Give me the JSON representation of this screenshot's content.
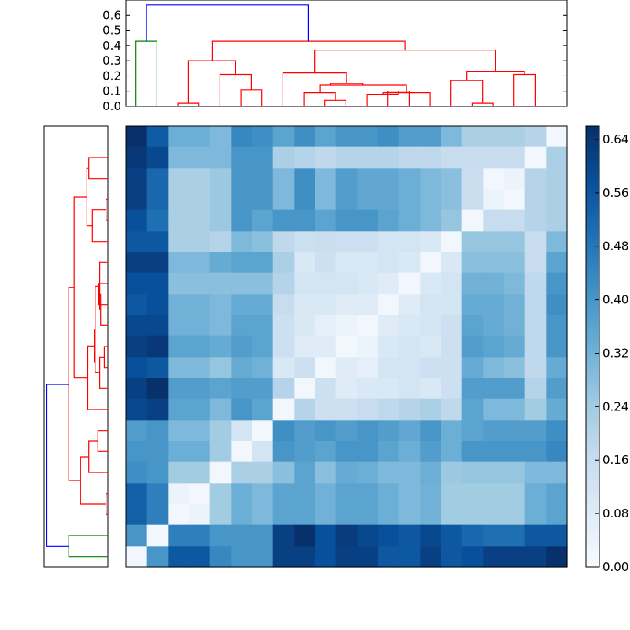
{
  "chart_data": [
    {
      "panel": "top-dendrogram",
      "type": "dendrogram",
      "ylim": [
        0,
        0.7
      ],
      "yticks": [
        "0.0",
        "0.1",
        "0.2",
        "0.3",
        "0.4",
        "0.5",
        "0.6"
      ],
      "links": [
        {
          "x": [
            1,
            1,
            2,
            2
          ],
          "y": [
            0,
            0.43,
            0.43,
            0
          ],
          "color": "#008000"
        },
        {
          "x": [
            3,
            3,
            4,
            4
          ],
          "y": [
            0,
            0.02,
            0.02,
            0
          ],
          "color": "#ff0000"
        },
        {
          "x": [
            6,
            6,
            7,
            7
          ],
          "y": [
            0,
            0.11,
            0.11,
            0
          ],
          "color": "#ff0000"
        },
        {
          "x": [
            5,
            5,
            6.5,
            6.5
          ],
          "y": [
            0,
            0.21,
            0.21,
            0.11
          ],
          "color": "#ff0000"
        },
        {
          "x": [
            3.5,
            3.5,
            5.75,
            5.75
          ],
          "y": [
            0.02,
            0.3,
            0.3,
            0.21
          ],
          "color": "#ff0000"
        },
        {
          "x": [
            10,
            10,
            11,
            11
          ],
          "y": [
            0,
            0.04,
            0.04,
            0
          ],
          "color": "#ff0000"
        },
        {
          "x": [
            9,
            9,
            10.5,
            10.5
          ],
          "y": [
            0,
            0.09,
            0.09,
            0.04
          ],
          "color": "#ff0000"
        },
        {
          "x": [
            13,
            13,
            14,
            14
          ],
          "y": [
            0,
            0.1,
            0.1,
            0
          ],
          "color": "#ff0000"
        },
        {
          "x": [
            12,
            12,
            13.5,
            13.5
          ],
          "y": [
            0,
            0.08,
            0.08,
            0.1
          ],
          "color": "#ff0000"
        },
        {
          "x": [
            12.75,
            12.75,
            15,
            15
          ],
          "y": [
            0.08,
            0.09,
            0.09,
            0
          ],
          "color": "#ff0000"
        },
        {
          "x": [
            13.875,
            13.875,
            9.75,
            9.75
          ],
          "y": [
            0.09,
            0.14,
            0.14,
            0.09
          ],
          "color": "#ff0000"
        },
        {
          "x": [
            10.25,
            10.25,
            11.8,
            11.8
          ],
          "y": [
            0.14,
            0.15,
            0.15,
            0.14
          ],
          "color": "#ff0000"
        },
        {
          "x": [
            8,
            8,
            11.025,
            11.025
          ],
          "y": [
            0,
            0.22,
            0.22,
            0.15
          ],
          "color": "#ff0000"
        },
        {
          "x": [
            17,
            17,
            18,
            18
          ],
          "y": [
            0,
            0.02,
            0.02,
            0
          ],
          "color": "#ff0000"
        },
        {
          "x": [
            16,
            16,
            17.5,
            17.5
          ],
          "y": [
            0,
            0.17,
            0.17,
            0.02
          ],
          "color": "#ff0000"
        },
        {
          "x": [
            19,
            19,
            20,
            20
          ],
          "y": [
            0,
            0.21,
            0.21,
            0
          ],
          "color": "#ff0000"
        },
        {
          "x": [
            16.75,
            16.75,
            19.5,
            19.5
          ],
          "y": [
            0.17,
            0.23,
            0.23,
            0.21
          ],
          "color": "#ff0000"
        },
        {
          "x": [
            9.5125,
            9.5125,
            18.125,
            18.125
          ],
          "y": [
            0.22,
            0.37,
            0.37,
            0.23
          ],
          "color": "#ff0000"
        },
        {
          "x": [
            4.625,
            4.625,
            13.8,
            13.8
          ],
          "y": [
            0.3,
            0.43,
            0.43,
            0.37
          ],
          "color": "#ff0000"
        },
        {
          "x": [
            1.5,
            1.5,
            9.2,
            9.2
          ],
          "y": [
            0.43,
            0.67,
            0.67,
            0.43
          ],
          "color": "#0000ff"
        }
      ]
    },
    {
      "panel": "left-dendrogram",
      "type": "dendrogram",
      "orientation": "left",
      "xlim": [
        0.7,
        0
      ],
      "links": [
        {
          "y": [
            1,
            1,
            2,
            2
          ],
          "x": [
            0,
            0.43,
            0.43,
            0
          ],
          "color": "#008000"
        },
        {
          "y": [
            3,
            3,
            4,
            4
          ],
          "x": [
            0,
            0.02,
            0.02,
            0
          ],
          "color": "#ff0000"
        },
        {
          "y": [
            6,
            6,
            7,
            7
          ],
          "x": [
            0,
            0.11,
            0.11,
            0
          ],
          "color": "#ff0000"
        },
        {
          "y": [
            5,
            5,
            6.5,
            6.5
          ],
          "x": [
            0,
            0.21,
            0.21,
            0.11
          ],
          "color": "#ff0000"
        },
        {
          "y": [
            3.5,
            3.5,
            5.75,
            5.75
          ],
          "x": [
            0.02,
            0.3,
            0.3,
            0.21
          ],
          "color": "#ff0000"
        },
        {
          "y": [
            10,
            10,
            11,
            11
          ],
          "x": [
            0,
            0.04,
            0.04,
            0
          ],
          "color": "#ff0000"
        },
        {
          "y": [
            9,
            9,
            10.5,
            10.5
          ],
          "x": [
            0,
            0.09,
            0.09,
            0.04
          ],
          "color": "#ff0000"
        },
        {
          "y": [
            13,
            13,
            14,
            14
          ],
          "x": [
            0,
            0.1,
            0.1,
            0
          ],
          "color": "#ff0000"
        },
        {
          "y": [
            12,
            12,
            13.5,
            13.5
          ],
          "x": [
            0,
            0.08,
            0.08,
            0.1
          ],
          "color": "#ff0000"
        },
        {
          "y": [
            12.75,
            12.75,
            15,
            15
          ],
          "x": [
            0.08,
            0.09,
            0.09,
            0
          ],
          "color": "#ff0000"
        },
        {
          "y": [
            13.875,
            13.875,
            9.75,
            9.75
          ],
          "x": [
            0.09,
            0.14,
            0.14,
            0.09
          ],
          "color": "#ff0000"
        },
        {
          "y": [
            10.25,
            10.25,
            11.8,
            11.8
          ],
          "x": [
            0.14,
            0.15,
            0.15,
            0.14
          ],
          "color": "#ff0000"
        },
        {
          "y": [
            8,
            8,
            11.025,
            11.025
          ],
          "x": [
            0,
            0.22,
            0.22,
            0.15
          ],
          "color": "#ff0000"
        },
        {
          "y": [
            17,
            17,
            18,
            18
          ],
          "x": [
            0,
            0.02,
            0.02,
            0
          ],
          "color": "#ff0000"
        },
        {
          "y": [
            16,
            16,
            17.5,
            17.5
          ],
          "x": [
            0,
            0.17,
            0.17,
            0.02
          ],
          "color": "#ff0000"
        },
        {
          "y": [
            19,
            19,
            20,
            20
          ],
          "x": [
            0,
            0.21,
            0.21,
            0
          ],
          "color": "#ff0000"
        },
        {
          "y": [
            16.75,
            16.75,
            19.5,
            19.5
          ],
          "x": [
            0.17,
            0.23,
            0.23,
            0.21
          ],
          "color": "#ff0000"
        },
        {
          "y": [
            9.5125,
            9.5125,
            18.125,
            18.125
          ],
          "x": [
            0.22,
            0.37,
            0.37,
            0.23
          ],
          "color": "#ff0000"
        },
        {
          "y": [
            4.625,
            4.625,
            13.8,
            13.8
          ],
          "x": [
            0.3,
            0.43,
            0.43,
            0.37
          ],
          "color": "#ff0000"
        },
        {
          "y": [
            1.5,
            1.5,
            9.2,
            9.2
          ],
          "x": [
            0.43,
            0.67,
            0.67,
            0.43
          ],
          "color": "#0000ff"
        }
      ]
    },
    {
      "panel": "heatmap",
      "type": "heatmap",
      "colormap": "Blues",
      "vmin": 0,
      "vmax": 0.66,
      "rows_top_to_bottom": [
        [
          0.66,
          0.55,
          0.33,
          0.33,
          0.3,
          0.44,
          0.42,
          0.36,
          0.42,
          0.36,
          0.4,
          0.4,
          0.42,
          0.38,
          0.38,
          0.3,
          0.22,
          0.22,
          0.22,
          0.2,
          0.02
        ],
        [
          0.64,
          0.6,
          0.3,
          0.3,
          0.3,
          0.4,
          0.4,
          0.22,
          0.2,
          0.18,
          0.2,
          0.2,
          0.2,
          0.18,
          0.18,
          0.16,
          0.16,
          0.16,
          0.16,
          0.02,
          0.22
        ],
        [
          0.62,
          0.52,
          0.22,
          0.22,
          0.25,
          0.4,
          0.4,
          0.3,
          0.42,
          0.3,
          0.38,
          0.35,
          0.35,
          0.33,
          0.3,
          0.28,
          0.15,
          0.02,
          0.04,
          0.2,
          0.22
        ],
        [
          0.62,
          0.52,
          0.22,
          0.22,
          0.25,
          0.4,
          0.4,
          0.3,
          0.42,
          0.3,
          0.38,
          0.35,
          0.35,
          0.33,
          0.3,
          0.28,
          0.15,
          0.04,
          0.02,
          0.2,
          0.22
        ],
        [
          0.58,
          0.5,
          0.22,
          0.22,
          0.25,
          0.4,
          0.36,
          0.4,
          0.4,
          0.36,
          0.4,
          0.4,
          0.36,
          0.33,
          0.3,
          0.26,
          0.02,
          0.16,
          0.16,
          0.2,
          0.22
        ],
        [
          0.56,
          0.56,
          0.22,
          0.22,
          0.2,
          0.3,
          0.28,
          0.18,
          0.14,
          0.15,
          0.14,
          0.14,
          0.12,
          0.12,
          0.1,
          0.02,
          0.26,
          0.26,
          0.26,
          0.16,
          0.3
        ],
        [
          0.62,
          0.62,
          0.3,
          0.3,
          0.34,
          0.36,
          0.36,
          0.22,
          0.1,
          0.14,
          0.1,
          0.1,
          0.12,
          0.1,
          0.02,
          0.1,
          0.28,
          0.28,
          0.28,
          0.16,
          0.36
        ],
        [
          0.58,
          0.58,
          0.28,
          0.28,
          0.28,
          0.28,
          0.28,
          0.2,
          0.12,
          0.12,
          0.12,
          0.1,
          0.08,
          0.02,
          0.1,
          0.12,
          0.32,
          0.32,
          0.3,
          0.18,
          0.4
        ],
        [
          0.56,
          0.58,
          0.32,
          0.32,
          0.3,
          0.34,
          0.34,
          0.16,
          0.1,
          0.1,
          0.08,
          0.08,
          0.02,
          0.08,
          0.12,
          0.12,
          0.34,
          0.34,
          0.32,
          0.18,
          0.42
        ],
        [
          0.6,
          0.6,
          0.32,
          0.32,
          0.3,
          0.36,
          0.36,
          0.14,
          0.1,
          0.06,
          0.04,
          0.02,
          0.08,
          0.1,
          0.12,
          0.14,
          0.36,
          0.34,
          0.32,
          0.18,
          0.4
        ],
        [
          0.62,
          0.64,
          0.36,
          0.36,
          0.34,
          0.38,
          0.36,
          0.14,
          0.08,
          0.08,
          0.02,
          0.04,
          0.1,
          0.12,
          0.1,
          0.14,
          0.38,
          0.36,
          0.34,
          0.18,
          0.4
        ],
        [
          0.58,
          0.56,
          0.3,
          0.3,
          0.26,
          0.34,
          0.32,
          0.1,
          0.14,
          0.02,
          0.08,
          0.06,
          0.12,
          0.12,
          0.14,
          0.14,
          0.34,
          0.3,
          0.28,
          0.18,
          0.34
        ],
        [
          0.62,
          0.66,
          0.38,
          0.38,
          0.36,
          0.38,
          0.38,
          0.2,
          0.02,
          0.14,
          0.08,
          0.1,
          0.1,
          0.12,
          0.1,
          0.14,
          0.38,
          0.38,
          0.38,
          0.2,
          0.38
        ],
        [
          0.6,
          0.62,
          0.36,
          0.36,
          0.3,
          0.4,
          0.36,
          0.02,
          0.2,
          0.14,
          0.14,
          0.16,
          0.18,
          0.2,
          0.22,
          0.18,
          0.36,
          0.3,
          0.3,
          0.24,
          0.34
        ],
        [
          0.38,
          0.4,
          0.3,
          0.3,
          0.24,
          0.12,
          0.02,
          0.42,
          0.38,
          0.4,
          0.38,
          0.4,
          0.38,
          0.35,
          0.4,
          0.33,
          0.36,
          0.38,
          0.38,
          0.38,
          0.42
        ],
        [
          0.4,
          0.4,
          0.33,
          0.33,
          0.24,
          0.02,
          0.12,
          0.4,
          0.38,
          0.36,
          0.4,
          0.4,
          0.36,
          0.33,
          0.38,
          0.33,
          0.4,
          0.4,
          0.4,
          0.4,
          0.44
        ],
        [
          0.42,
          0.4,
          0.24,
          0.24,
          0.02,
          0.22,
          0.22,
          0.28,
          0.36,
          0.28,
          0.34,
          0.33,
          0.3,
          0.3,
          0.33,
          0.25,
          0.26,
          0.26,
          0.26,
          0.3,
          0.3
        ],
        [
          0.54,
          0.46,
          0.04,
          0.02,
          0.24,
          0.33,
          0.3,
          0.36,
          0.36,
          0.32,
          0.36,
          0.36,
          0.33,
          0.3,
          0.32,
          0.24,
          0.24,
          0.24,
          0.24,
          0.33,
          0.36
        ],
        [
          0.54,
          0.46,
          0.02,
          0.04,
          0.24,
          0.33,
          0.3,
          0.36,
          0.36,
          0.32,
          0.36,
          0.36,
          0.33,
          0.3,
          0.32,
          0.24,
          0.24,
          0.24,
          0.24,
          0.33,
          0.36
        ],
        [
          0.4,
          0.02,
          0.46,
          0.46,
          0.4,
          0.4,
          0.4,
          0.62,
          0.66,
          0.58,
          0.63,
          0.6,
          0.58,
          0.56,
          0.6,
          0.56,
          0.52,
          0.5,
          0.5,
          0.56,
          0.56
        ],
        [
          0.02,
          0.4,
          0.56,
          0.56,
          0.44,
          0.4,
          0.4,
          0.62,
          0.62,
          0.58,
          0.62,
          0.62,
          0.56,
          0.56,
          0.62,
          0.56,
          0.58,
          0.62,
          0.62,
          0.62,
          0.66
        ]
      ]
    },
    {
      "panel": "colorbar",
      "type": "colorbar",
      "range": [
        0,
        0.66
      ],
      "ticks": [
        {
          "value": 0.0,
          "label": "0.00"
        },
        {
          "value": 0.08,
          "label": "0.08"
        },
        {
          "value": 0.16,
          "label": "0.16"
        },
        {
          "value": 0.24,
          "label": "0.24"
        },
        {
          "value": 0.32,
          "label": "0.32"
        },
        {
          "value": 0.4,
          "label": "0.40"
        },
        {
          "value": 0.48,
          "label": "0.48"
        },
        {
          "value": 0.56,
          "label": "0.56"
        },
        {
          "value": 0.64,
          "label": "0.64"
        }
      ]
    }
  ]
}
